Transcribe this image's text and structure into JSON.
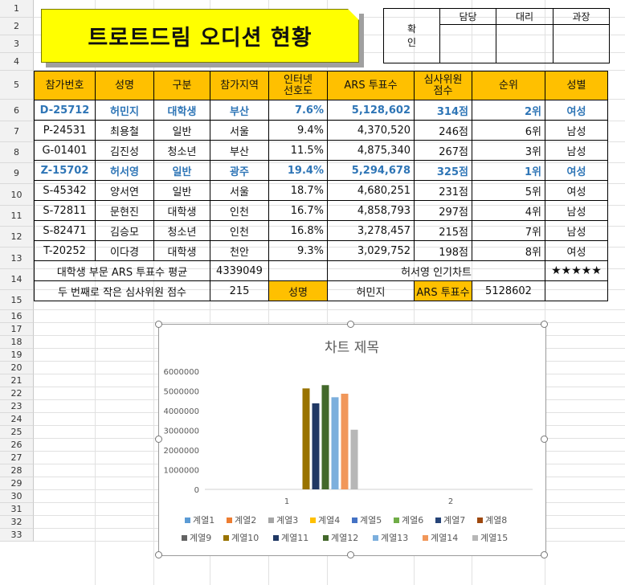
{
  "rows": [
    "1",
    "2",
    "3",
    "4",
    "5",
    "6",
    "7",
    "8",
    "9",
    "10",
    "11",
    "12",
    "13",
    "14",
    "15",
    "16",
    "17",
    "18",
    "19",
    "20",
    "21",
    "22",
    "23",
    "24",
    "25",
    "26",
    "27",
    "28",
    "29",
    "30",
    "31",
    "32",
    "33"
  ],
  "title": "트로트드림 오디션 현황",
  "approval": {
    "confirm": "확\n인",
    "c1": "담당",
    "c2": "대리",
    "c3": "과장"
  },
  "headers": [
    "참가번호",
    "성명",
    "구분",
    "참가지역",
    "인터넷\n선호도",
    "ARS 투표수",
    "심사위원\n점수",
    "순위",
    "성별"
  ],
  "records": [
    [
      "D-25712",
      "허민지",
      "대학생",
      "부산",
      "7.6%",
      "5,128,602",
      "314점",
      "2위",
      "여성"
    ],
    [
      "P-24531",
      "최용철",
      "일반",
      "서울",
      "9.4%",
      "4,370,520",
      "246점",
      "6위",
      "남성"
    ],
    [
      "G-01401",
      "김진성",
      "청소년",
      "부산",
      "11.5%",
      "4,875,340",
      "267점",
      "3위",
      "남성"
    ],
    [
      "Z-15702",
      "허서영",
      "일반",
      "광주",
      "19.4%",
      "5,294,678",
      "325점",
      "1위",
      "여성"
    ],
    [
      "S-45342",
      "양서연",
      "일반",
      "서울",
      "18.7%",
      "4,680,251",
      "231점",
      "5위",
      "여성"
    ],
    [
      "S-72811",
      "문현진",
      "대학생",
      "인천",
      "16.7%",
      "4,858,793",
      "297점",
      "4위",
      "남성"
    ],
    [
      "S-82471",
      "김승모",
      "청소년",
      "인천",
      "16.8%",
      "3,278,457",
      "215점",
      "7위",
      "남성"
    ],
    [
      "T-20252",
      "이다경",
      "대학생",
      "천안",
      "9.3%",
      "3,029,752",
      "198점",
      "8위",
      "여성"
    ]
  ],
  "highlight_rows": [
    0,
    3
  ],
  "summary": {
    "r13_label": "대학생 부문 ARS 투표수 평균",
    "r13_value": "4339049",
    "r13_label2": "허서영 인기차트",
    "r13_stars": "★★★★★",
    "r14_label": "두 번째로 작은 심사위원 점수",
    "r14_value": "215",
    "r14_k1": "성명",
    "r14_v1": "허민지",
    "r14_k2": "ARS 투표수",
    "r14_v2": "5128602"
  },
  "chart_data": {
    "type": "bar",
    "title": "차트 제목",
    "categories": [
      "1",
      "2"
    ],
    "ylim": [
      0,
      6000000
    ],
    "yticks": [
      "0",
      "1000000",
      "2000000",
      "3000000",
      "4000000",
      "5000000",
      "6000000"
    ],
    "series": [
      {
        "name": "계열1",
        "color": "#5b9bd5",
        "values": [
          null,
          null
        ]
      },
      {
        "name": "계열2",
        "color": "#ed7d31",
        "values": [
          null,
          null
        ]
      },
      {
        "name": "계열3",
        "color": "#a5a5a5",
        "values": [
          null,
          null
        ]
      },
      {
        "name": "계열4",
        "color": "#ffc000",
        "values": [
          null,
          null
        ]
      },
      {
        "name": "계열5",
        "color": "#4472c4",
        "values": [
          null,
          null
        ]
      },
      {
        "name": "계열6",
        "color": "#70ad47",
        "values": [
          null,
          null
        ]
      },
      {
        "name": "계열7",
        "color": "#264478",
        "values": [
          null,
          null
        ]
      },
      {
        "name": "계열8",
        "color": "#9e480e",
        "values": [
          null,
          null
        ]
      },
      {
        "name": "계열9",
        "color": "#636363",
        "values": [
          null,
          null
        ]
      },
      {
        "name": "계열10",
        "color": "#997300",
        "values": [
          5128602,
          null
        ]
      },
      {
        "name": "계열11",
        "color": "#203864",
        "values": [
          4370520,
          null
        ]
      },
      {
        "name": "계열12",
        "color": "#43682b",
        "values": [
          5294678,
          null
        ]
      },
      {
        "name": "계열13",
        "color": "#7cafdd",
        "values": [
          4680251,
          null
        ]
      },
      {
        "name": "계열14",
        "color": "#f1975a",
        "values": [
          4858793,
          null
        ]
      },
      {
        "name": "계열15",
        "color": "#b7b7b7",
        "values": [
          3029752,
          null
        ]
      }
    ]
  }
}
